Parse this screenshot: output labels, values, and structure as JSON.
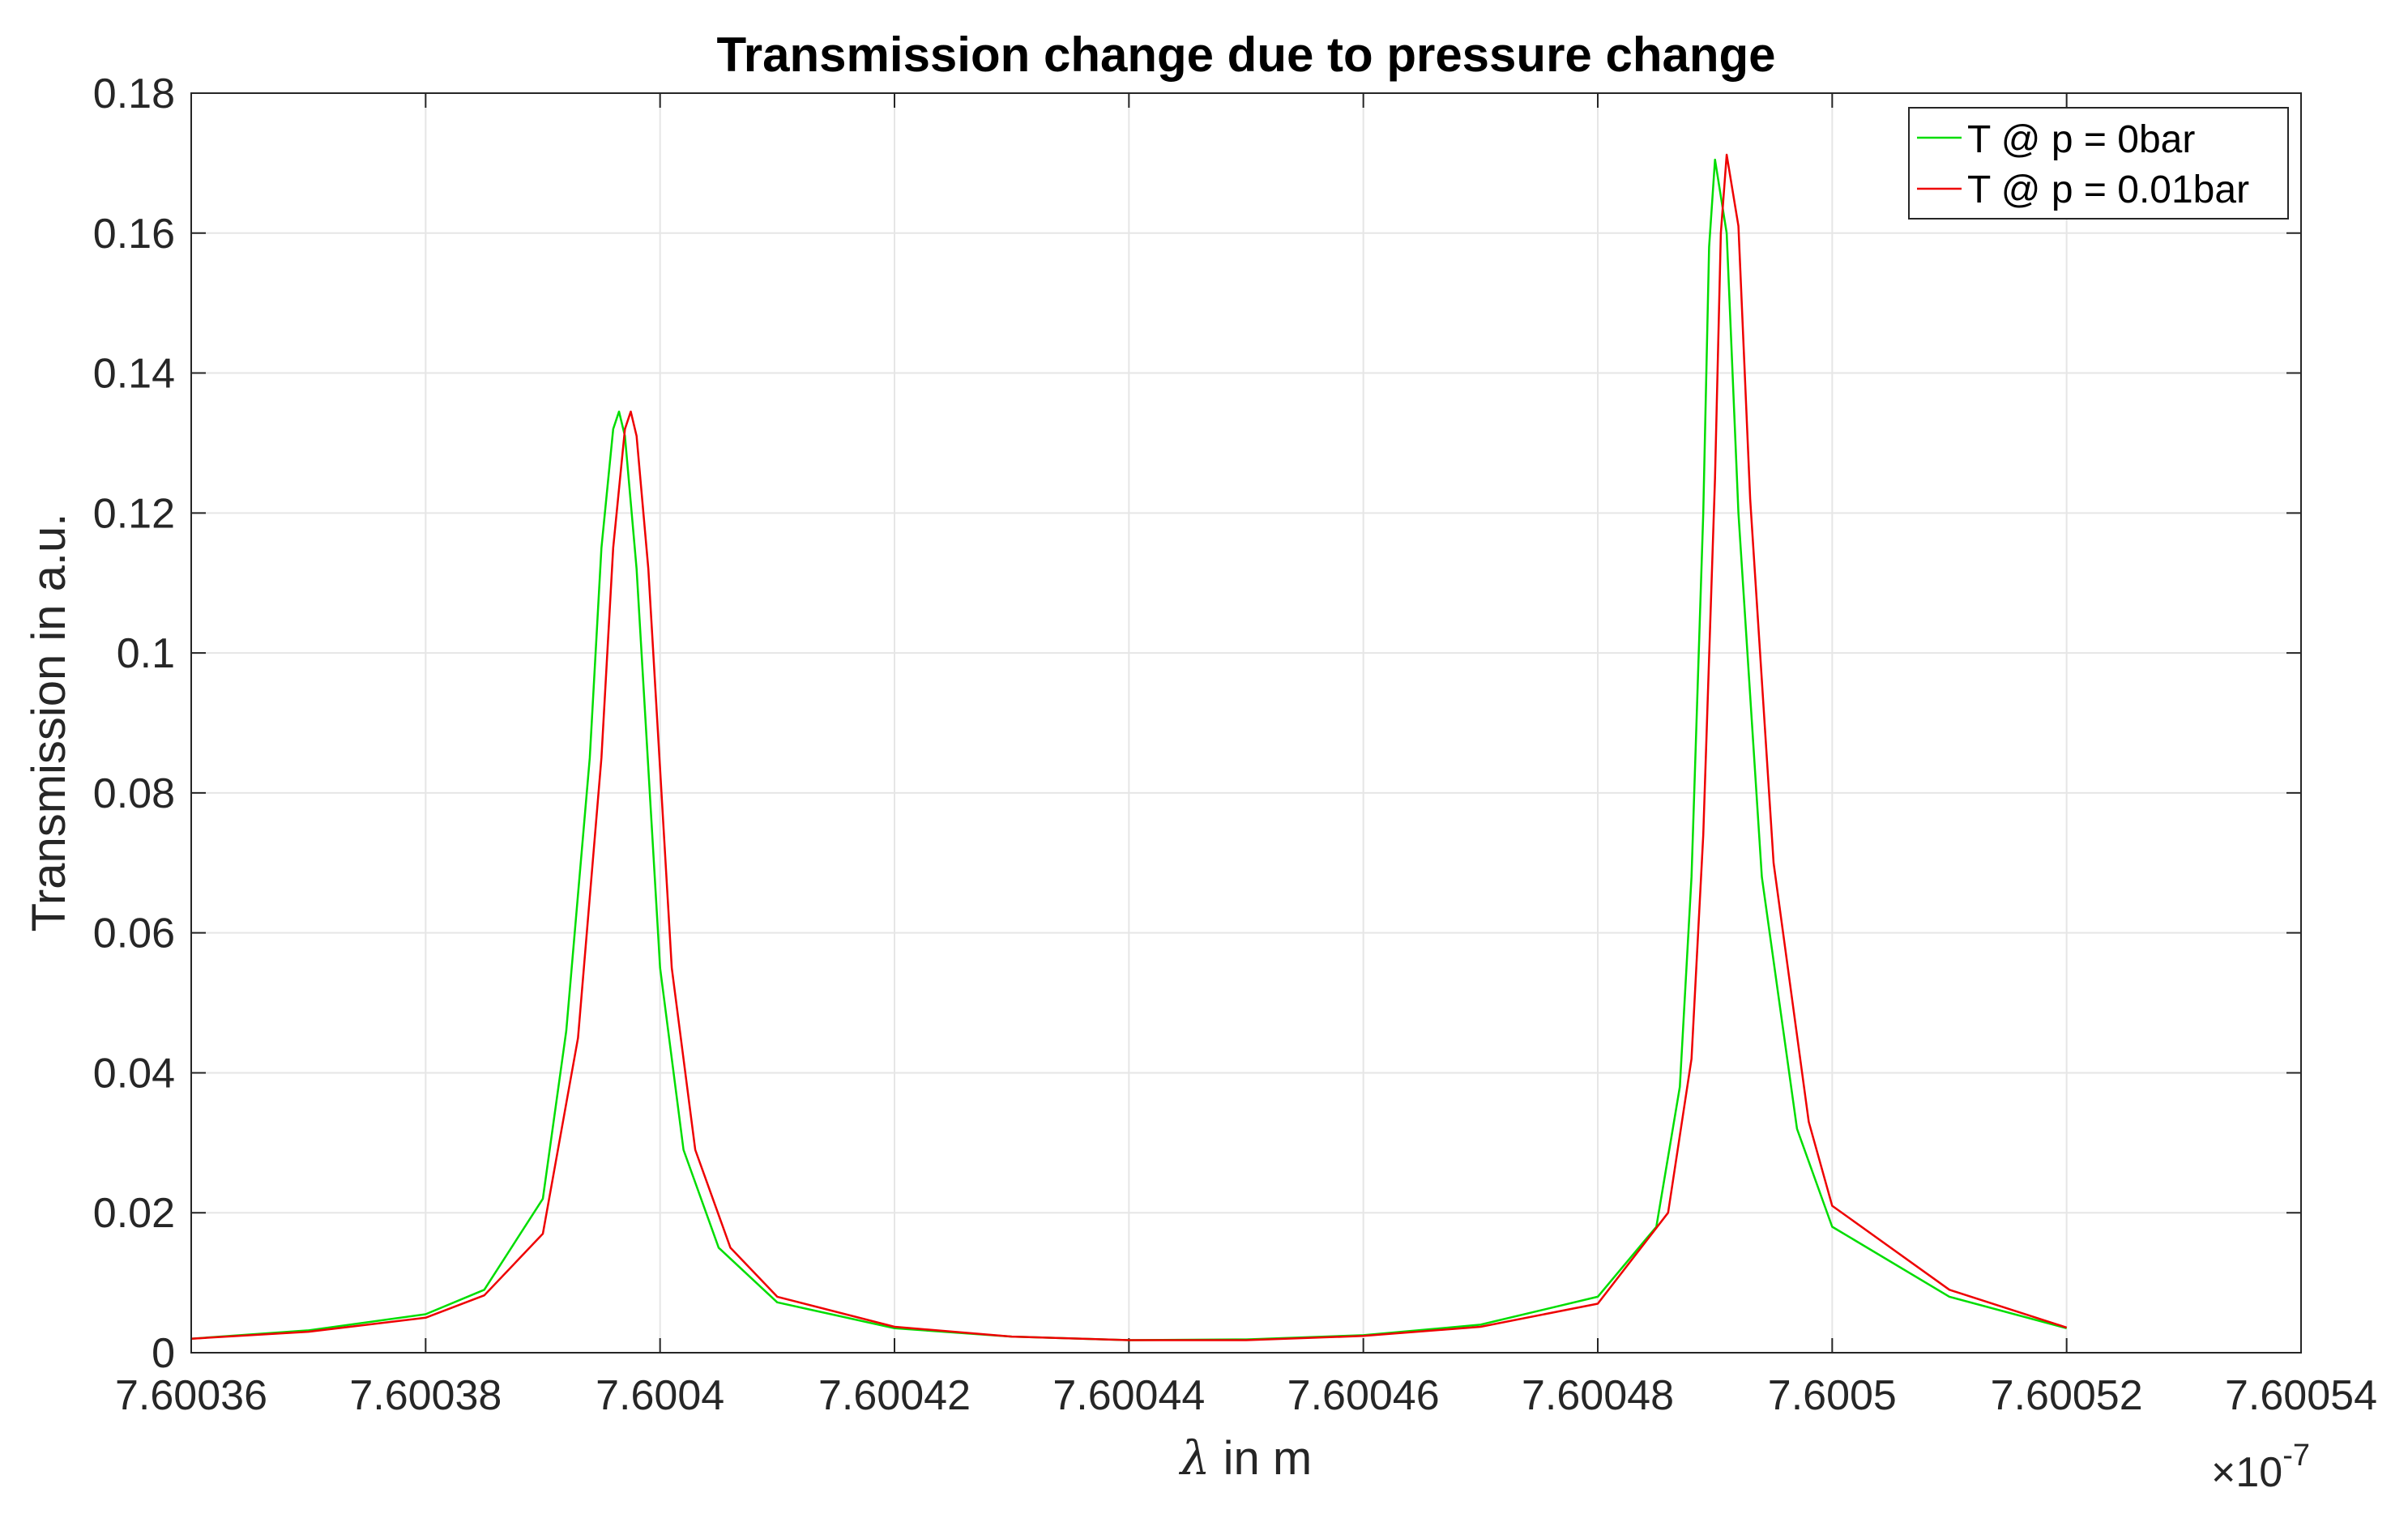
{
  "chart_data": {
    "type": "line",
    "title": "Transmission change due to pressure change",
    "xlabel_symbol": "λ",
    "xlabel_rest": " in m",
    "ylabel": "Transmission in a.u.",
    "x_exponent_base": "×10",
    "x_exponent": "-7",
    "xlim": [
      7.60036,
      7.60054
    ],
    "ylim": [
      0,
      0.18
    ],
    "xticks": [
      7.60036,
      7.60038,
      7.6004,
      7.60042,
      7.60044,
      7.60046,
      7.60048,
      7.6005,
      7.60052,
      7.60054
    ],
    "xtick_labels": [
      "7.60036",
      "7.60038",
      "7.6004",
      "7.60042",
      "7.60044",
      "7.60046",
      "7.60048",
      "7.6005",
      "7.60052",
      "7.60054"
    ],
    "yticks": [
      0,
      0.02,
      0.04,
      0.06,
      0.08,
      0.1,
      0.12,
      0.14,
      0.16,
      0.18
    ],
    "ytick_labels": [
      "0",
      "0.02",
      "0.04",
      "0.06",
      "0.08",
      "0.1",
      "0.12",
      "0.14",
      "0.16",
      "0.18"
    ],
    "grid": true,
    "legend_position": "top-right",
    "series": [
      {
        "name": "T @ p = 0bar",
        "color": "#00dd00",
        "x": [
          7.60036,
          7.60037,
          7.60038,
          7.600385,
          7.60039,
          7.600392,
          7.600394,
          7.600395,
          7.600396,
          7.6003965,
          7.600397,
          7.600398,
          7.6004,
          7.600402,
          7.600405,
          7.60041,
          7.60042,
          7.60043,
          7.60044,
          7.60045,
          7.60046,
          7.60047,
          7.60048,
          7.600485,
          7.600487,
          7.600488,
          7.600489,
          7.6004895,
          7.60049,
          7.600491,
          7.600492,
          7.600494,
          7.600497,
          7.6005,
          7.60051,
          7.60052
        ],
        "y": [
          0.002,
          0.0032,
          0.0055,
          0.009,
          0.022,
          0.046,
          0.085,
          0.115,
          0.132,
          0.1345,
          0.131,
          0.112,
          0.055,
          0.029,
          0.015,
          0.0072,
          0.0035,
          0.0023,
          0.0018,
          0.0019,
          0.0025,
          0.004,
          0.008,
          0.018,
          0.038,
          0.068,
          0.12,
          0.158,
          0.1705,
          0.16,
          0.12,
          0.068,
          0.032,
          0.018,
          0.008,
          0.0035
        ]
      },
      {
        "name": "T @ p = 0.01bar",
        "color": "#ee0000",
        "x": [
          7.60036,
          7.60037,
          7.60038,
          7.600385,
          7.60039,
          7.600393,
          7.600395,
          7.600396,
          7.600397,
          7.6003975,
          7.600398,
          7.600399,
          7.600401,
          7.600403,
          7.600406,
          7.60041,
          7.60042,
          7.60043,
          7.60044,
          7.60045,
          7.60046,
          7.60047,
          7.60048,
          7.600486,
          7.600488,
          7.600489,
          7.60049,
          7.6004905,
          7.600491,
          7.600492,
          7.600493,
          7.600495,
          7.600498,
          7.6005,
          7.60051,
          7.60052
        ],
        "y": [
          0.002,
          0.003,
          0.005,
          0.0082,
          0.017,
          0.045,
          0.085,
          0.115,
          0.132,
          0.1345,
          0.131,
          0.112,
          0.055,
          0.029,
          0.015,
          0.008,
          0.0037,
          0.0023,
          0.0018,
          0.0018,
          0.0024,
          0.0037,
          0.007,
          0.02,
          0.042,
          0.074,
          0.125,
          0.16,
          0.1712,
          0.161,
          0.122,
          0.07,
          0.033,
          0.021,
          0.009,
          0.0036
        ]
      }
    ]
  }
}
